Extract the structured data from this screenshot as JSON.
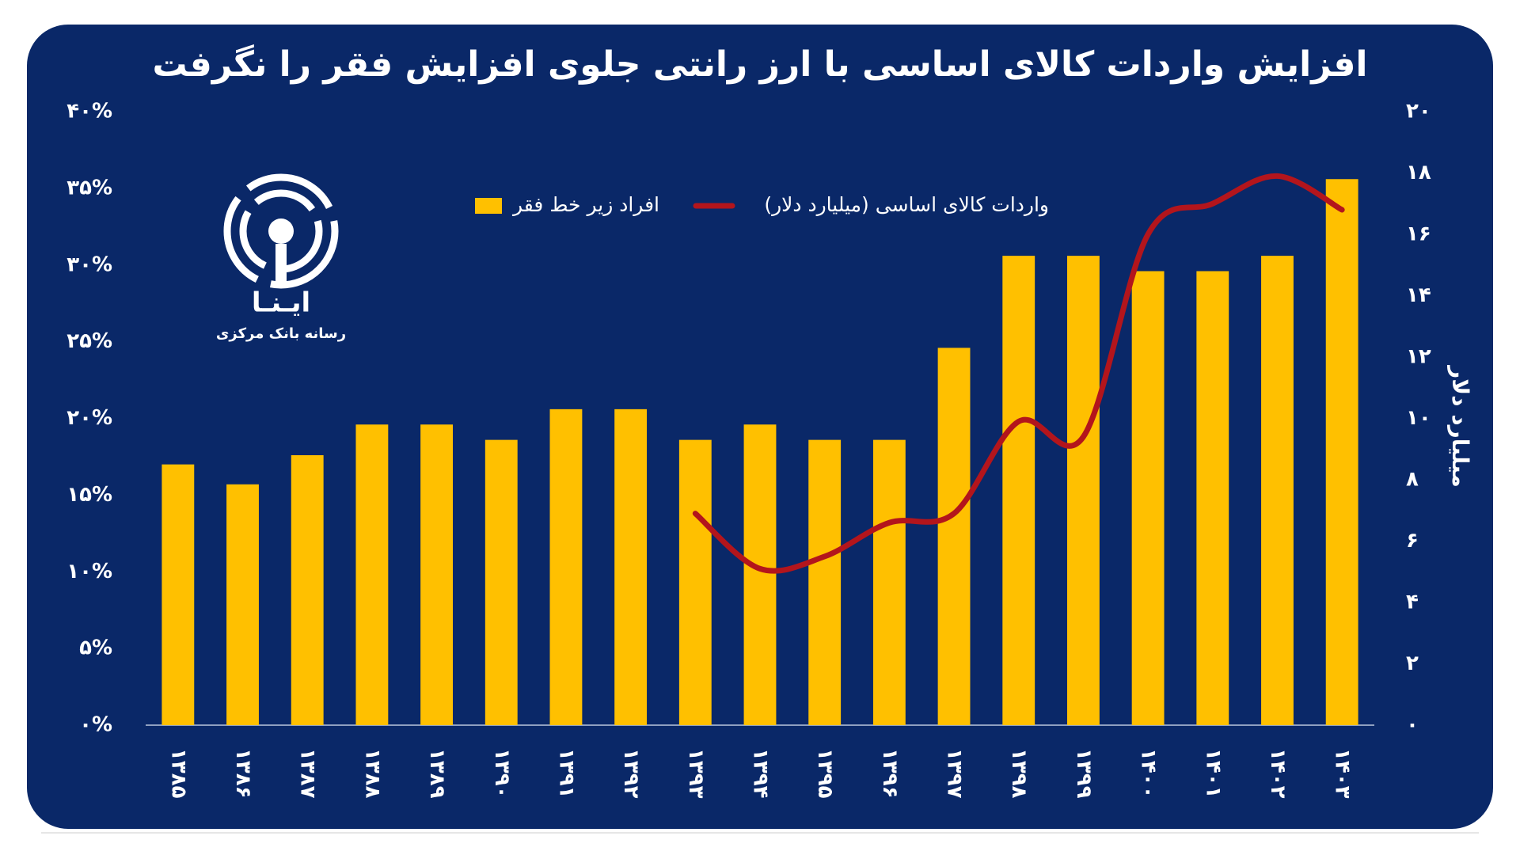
{
  "logo": {
    "name": "ایـنـا",
    "tagline": "رسانه بانک مرکزی"
  },
  "chart_data": {
    "type": "bar-line",
    "title": "افزایش واردات کالای اساسی با ارز رانتی جلوی افزایش فقر را نگرفت",
    "y2label": "میلیارد دلار",
    "categories": [
      "۱۳۸۵",
      "۱۳۸۶",
      "۱۳۸۷",
      "۱۳۸۸",
      "۱۳۸۹",
      "۱۳۹۰",
      "۱۳۹۱",
      "۱۳۹۲",
      "۱۳۹۳",
      "۱۳۹۴",
      "۱۳۹۵",
      "۱۳۹۶",
      "۱۳۹۷",
      "۱۳۹۸",
      "۱۳۹۹",
      "۱۴۰۰",
      "۱۴۰۱",
      "۱۴۰۲",
      "۱۴۰۳"
    ],
    "series": [
      {
        "name": "افراد زیر خط فقر",
        "color": "#ffc000",
        "kind": "bar",
        "values": [
          17,
          15.7,
          17.6,
          19.6,
          19.6,
          18.6,
          20.6,
          20.6,
          18.6,
          19.6,
          18.6,
          18.6,
          24.6,
          30.6,
          30.6,
          29.6,
          29.6,
          30.6,
          35.6
        ]
      },
      {
        "name": "واردات کالای اساسی (میلیارد دلار)",
        "color": "#b3151c",
        "kind": "line",
        "axis": "y2",
        "values": [
          null,
          null,
          null,
          null,
          null,
          null,
          null,
          null,
          6.9,
          5.1,
          5.5,
          6.6,
          6.9,
          9.9,
          9.4,
          16.0,
          17.0,
          17.9,
          16.8
        ]
      }
    ],
    "ylim": [
      0,
      40
    ],
    "yticks": [
      {
        "value": 0,
        "label": "۰%"
      },
      {
        "value": 5,
        "label": "۵%"
      },
      {
        "value": 10,
        "label": "۱۰%"
      },
      {
        "value": 15,
        "label": "۱۵%"
      },
      {
        "value": 20,
        "label": "۲۰%"
      },
      {
        "value": 25,
        "label": "۲۵%"
      },
      {
        "value": 30,
        "label": "۳۰%"
      },
      {
        "value": 35,
        "label": "۳۵%"
      },
      {
        "value": 40,
        "label": "۴۰%"
      }
    ],
    "y2lim": [
      0,
      20
    ],
    "y2ticks": [
      {
        "value": 0,
        "label": "۰"
      },
      {
        "value": 2,
        "label": "۲"
      },
      {
        "value": 4,
        "label": "۴"
      },
      {
        "value": 6,
        "label": "۶"
      },
      {
        "value": 8,
        "label": "۸"
      },
      {
        "value": 10,
        "label": "۱۰"
      },
      {
        "value": 12,
        "label": "۱۲"
      },
      {
        "value": 14,
        "label": "۱۴"
      },
      {
        "value": 16,
        "label": "۱۶"
      },
      {
        "value": 18,
        "label": "۱۸"
      },
      {
        "value": 20,
        "label": "۲۰"
      }
    ],
    "grid": false
  }
}
